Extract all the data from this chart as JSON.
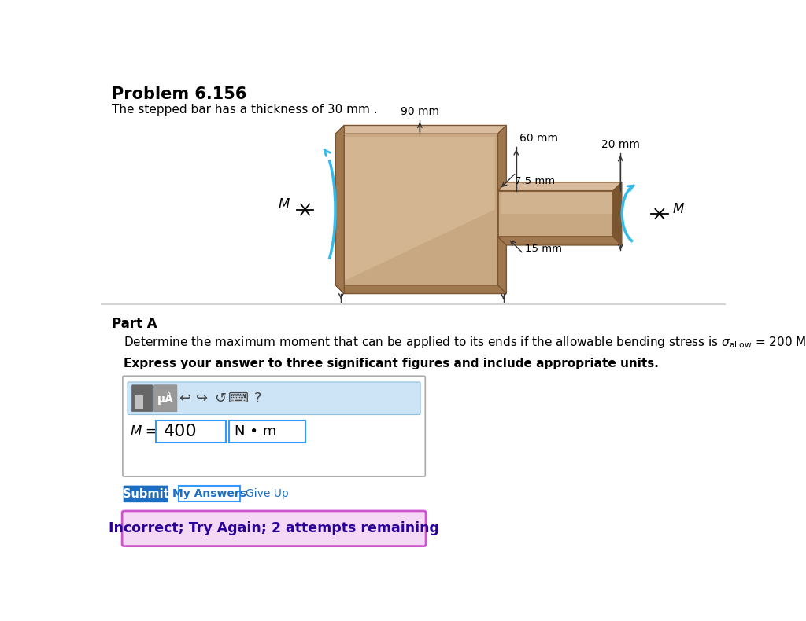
{
  "title": "Problem 6.156",
  "subtitle": "The stepped bar has a thickness of 30 mm .",
  "part_label": "Part A",
  "express_text": "Express your answer to three significant figures and include appropriate units.",
  "M_value": "400",
  "M_units": "N • m",
  "submit_text": "Submit",
  "my_answers_text": "My Answers",
  "give_up_text": "Give Up",
  "incorrect_text": "Incorrect; Try Again; 2 attempts remaining",
  "dim_90mm": "90 mm",
  "dim_60mm": "60 mm",
  "dim_75mm": "7.5 mm",
  "dim_20mm": "20 mm",
  "dim_15mm": "15 mm",
  "M_label": "M",
  "bg_color": "#ffffff",
  "bar_main_color": "#c8a882",
  "bar_top_color": "#d9bc9e",
  "bar_side_color": "#a07850",
  "bar_dark_color": "#7a5530",
  "bar_light_color": "#e8d0b0",
  "bar_highlight": "#ddc8a8",
  "submit_bg": "#1a6fc4",
  "submit_fg": "#ffffff",
  "incorrect_bg": "#f5d8f5",
  "incorrect_border": "#cc55cc",
  "incorrect_text_color": "#2a009a",
  "toolbar_bg": "#cce4f5",
  "input_border": "#3399ff",
  "separator_color": "#cccccc",
  "arrow_color": "#33bbee",
  "dim_color": "#333333"
}
